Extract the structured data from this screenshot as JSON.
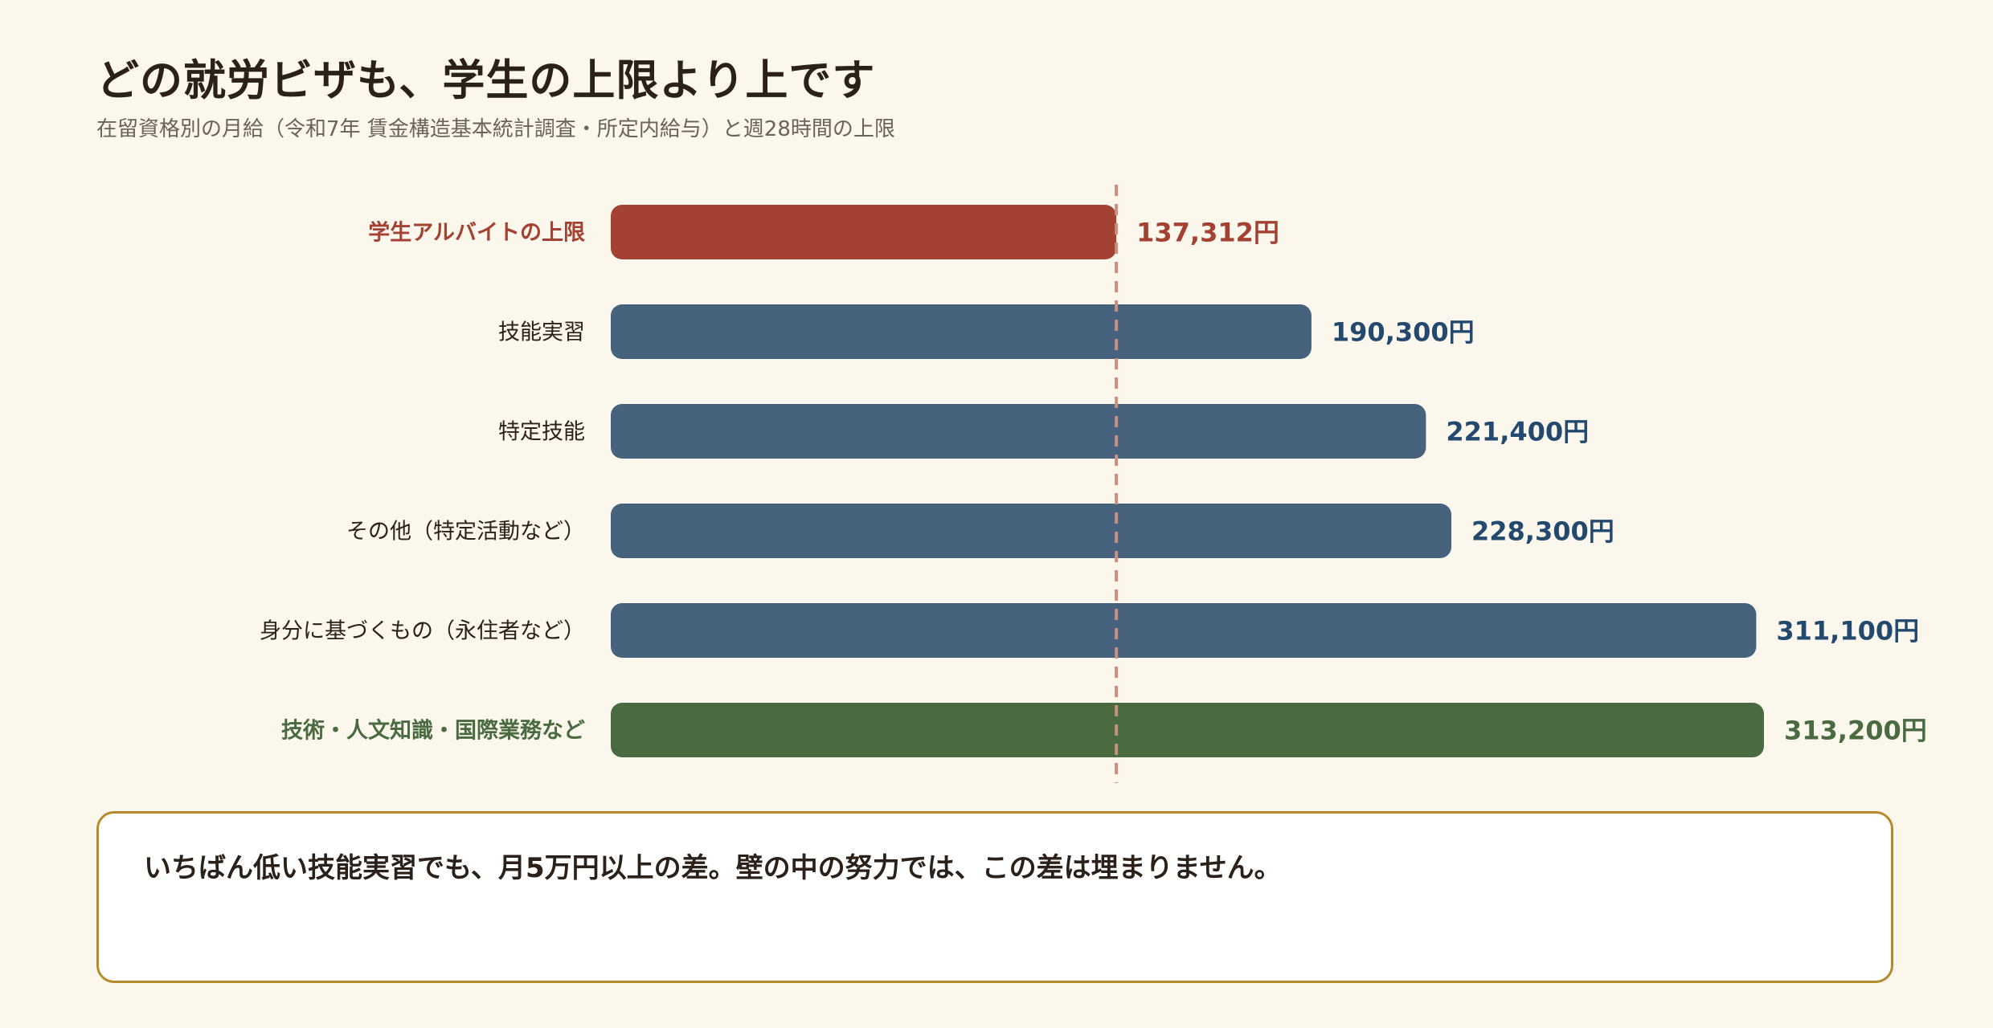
{
  "header": {
    "title": "どの就労ビザも、学生の上限より上です",
    "subtitle": "在留資格別の月給（令和7年 賃金構造基本統計調査・所定内給与）と週28時間の上限"
  },
  "colors": {
    "highlight_red": "#a34232",
    "bar_blue": "#46627c",
    "bar_green": "#4a6b42",
    "value_blue": "#234a6e",
    "reference_line": "#c99080",
    "note_border": "#b58a2a",
    "background": "#fbf7ec"
  },
  "chart_data": {
    "type": "bar",
    "orientation": "horizontal",
    "title": "どの就労ビザも、学生の上限より上です",
    "subtitle": "在留資格別の月給（令和7年 賃金構造基本統計調査・所定内給与）と週28時間の上限",
    "unit": "円",
    "categories": [
      "学生アルバイトの上限",
      "技能実習",
      "特定技能",
      "その他（特定活動など）",
      "身分に基づくもの（永住者など）",
      "技術・人文知識・国際業務など"
    ],
    "values": [
      137312,
      190300,
      221400,
      228300,
      311100,
      313200
    ],
    "value_labels": [
      "137,312円",
      "190,300円",
      "221,400円",
      "228,300円",
      "311,100円",
      "313,200円"
    ],
    "bar_styles": [
      "highlight_red",
      "bar_blue",
      "bar_blue",
      "bar_blue",
      "bar_blue",
      "bar_green"
    ],
    "reference_line": {
      "value": 137312,
      "style": "dashed"
    },
    "xlim": [
      0,
      313200
    ],
    "grid": false
  },
  "note": {
    "text": "いちばん低い技能実習でも、月5万円以上の差。壁の中の努力では、この差は埋まりません。"
  }
}
